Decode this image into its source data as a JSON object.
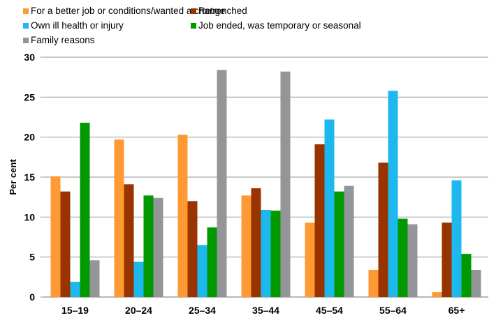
{
  "chart_data": {
    "type": "bar",
    "title": "",
    "xlabel": "",
    "ylabel": "Per cent",
    "ylim": [
      0,
      30
    ],
    "yticks": [
      0,
      5,
      10,
      15,
      20,
      25,
      30
    ],
    "grid": true,
    "legend_position": "top",
    "categories": [
      "15–19",
      "20–24",
      "25–34",
      "35–44",
      "45–54",
      "55–64",
      "65+"
    ],
    "series": [
      {
        "name": "For a better job or conditions/wanted a change",
        "color": "#FF9933",
        "values": [
          15.1,
          19.7,
          20.3,
          12.7,
          9.3,
          3.4,
          0.6
        ]
      },
      {
        "name": "Retrenched",
        "color": "#993300",
        "values": [
          13.2,
          14.1,
          12.0,
          13.6,
          19.1,
          16.8,
          9.3
        ]
      },
      {
        "name": "Own ill health or injury",
        "color": "#1CB8EE",
        "values": [
          1.9,
          4.4,
          6.5,
          10.9,
          22.2,
          25.8,
          14.6
        ]
      },
      {
        "name": "Job ended, was temporary or seasonal",
        "color": "#009900",
        "values": [
          21.8,
          12.7,
          8.7,
          10.8,
          13.2,
          9.8,
          5.4
        ]
      },
      {
        "name": "Family reasons",
        "color": "#939598",
        "values": [
          4.6,
          12.4,
          28.4,
          28.2,
          13.9,
          9.1,
          3.4
        ]
      }
    ]
  }
}
